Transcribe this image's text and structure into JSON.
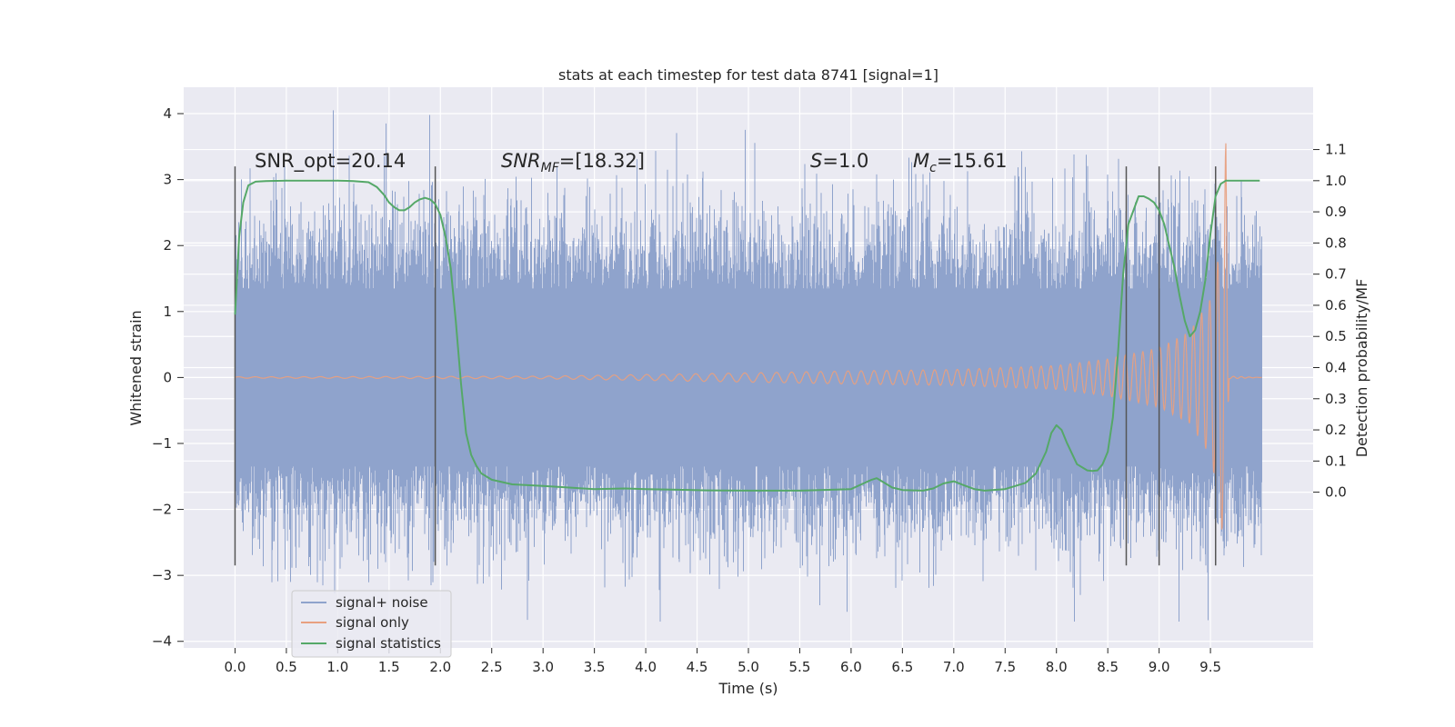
{
  "chart_data": {
    "type": "line",
    "title": "stats at each timestep for test data 8741 [signal=1]",
    "xlabel": "Time (s)",
    "ylabel": "Whitened strain",
    "y2label": "Detection probability/MF",
    "xlim": [
      -0.5,
      10.5
    ],
    "ylim": [
      -4.1,
      4.4
    ],
    "y2lim": [
      -0.5,
      1.3
    ],
    "xticks": [
      0.0,
      0.5,
      1.0,
      1.5,
      2.0,
      2.5,
      3.0,
      3.5,
      4.0,
      4.5,
      5.0,
      5.5,
      6.0,
      6.5,
      7.0,
      7.5,
      8.0,
      8.5,
      9.0,
      9.5
    ],
    "xtick_labels": [
      "0.0",
      "0.5",
      "1.0",
      "1.5",
      "2.0",
      "2.5",
      "3.0",
      "3.5",
      "4.0",
      "4.5",
      "5.0",
      "5.5",
      "6.0",
      "6.5",
      "7.0",
      "7.5",
      "8.0",
      "8.5",
      "9.0",
      "9.5"
    ],
    "yticks": [
      4,
      3,
      2,
      1,
      0,
      -1,
      -2,
      -3,
      -4
    ],
    "ytick_labels": [
      "4",
      "3",
      "2",
      "1",
      "0",
      "−1",
      "−2",
      "−3",
      "−4"
    ],
    "y2ticks": [
      1.1,
      1.0,
      0.9,
      0.8,
      0.7,
      0.6,
      0.5,
      0.4,
      0.3,
      0.2,
      0.1,
      0.0
    ],
    "y2tick_labels": [
      "1.1",
      "1.0",
      "0.9",
      "0.8",
      "0.7",
      "0.6",
      "0.5",
      "0.4",
      "0.3",
      "0.2",
      "0.1",
      "0.0"
    ],
    "grid": true,
    "legend_position": "lower-left",
    "annotations": {
      "snr_opt": "SNR_opt=20.14",
      "snr_mf_base": "SNR",
      "snr_mf_sub": "MF",
      "snr_mf_value": "=[18.32]",
      "s_base": "S",
      "s_value": "=1.0",
      "mc_base": "M",
      "mc_sub": "c",
      "mc_value": "=15.61"
    },
    "vertical_markers_x": [
      0.0,
      1.95,
      8.68,
      9.0,
      9.55
    ],
    "vertical_marker_ylim": [
      -2.85,
      3.2
    ],
    "series": [
      {
        "name": "signal+ noise",
        "color": "#8fa3cc",
        "x_range": [
          0.0,
          10.0
        ],
        "band_core": 1.35,
        "spike_envelope": [
          -3.7,
          4.05
        ]
      },
      {
        "name": "signal only",
        "color": "#e8a080",
        "chirp_amplitude": [
          [
            0.0,
            0.01
          ],
          [
            3.0,
            0.02
          ],
          [
            5.0,
            0.07
          ],
          [
            6.0,
            0.1
          ],
          [
            7.0,
            0.12
          ],
          [
            8.0,
            0.18
          ],
          [
            8.5,
            0.28
          ],
          [
            9.0,
            0.45
          ],
          [
            9.3,
            0.7
          ],
          [
            9.5,
            1.2
          ],
          [
            9.6,
            2.0
          ],
          [
            9.65,
            3.6
          ],
          [
            9.68,
            0.02
          ],
          [
            10.0,
            0.0
          ]
        ]
      },
      {
        "name": "signal statistics",
        "color": "#55a868",
        "x": [
          0.0,
          0.04,
          0.08,
          0.13,
          0.2,
          0.3,
          0.5,
          0.8,
          1.0,
          1.15,
          1.3,
          1.38,
          1.45,
          1.5,
          1.55,
          1.6,
          1.65,
          1.7,
          1.75,
          1.8,
          1.85,
          1.9,
          1.95,
          2.0,
          2.05,
          2.1,
          2.15,
          2.2,
          2.25,
          2.3,
          2.35,
          2.4,
          2.5,
          2.7,
          3.0,
          3.5,
          3.8,
          4.0,
          4.3,
          4.6,
          5.0,
          5.5,
          6.0,
          6.1,
          6.2,
          6.25,
          6.3,
          6.4,
          6.5,
          6.7,
          6.8,
          6.9,
          7.0,
          7.1,
          7.2,
          7.3,
          7.5,
          7.7,
          7.8,
          7.9,
          7.95,
          8.0,
          8.05,
          8.1,
          8.2,
          8.3,
          8.35,
          8.4,
          8.45,
          8.5,
          8.55,
          8.6,
          8.65,
          8.7,
          8.8,
          8.85,
          8.9,
          8.95,
          9.0,
          9.05,
          9.1,
          9.15,
          9.2,
          9.25,
          9.3,
          9.35,
          9.4,
          9.45,
          9.5,
          9.55,
          9.6,
          9.65,
          9.7,
          9.8,
          9.9,
          9.98
        ],
        "values": [
          0.57,
          0.82,
          0.93,
          0.985,
          0.997,
          0.999,
          1.0,
          1.0,
          1.0,
          0.999,
          0.995,
          0.98,
          0.955,
          0.93,
          0.915,
          0.905,
          0.905,
          0.915,
          0.93,
          0.94,
          0.945,
          0.94,
          0.925,
          0.89,
          0.82,
          0.72,
          0.55,
          0.35,
          0.19,
          0.12,
          0.085,
          0.06,
          0.04,
          0.025,
          0.02,
          0.01,
          0.012,
          0.01,
          0.008,
          0.006,
          0.005,
          0.005,
          0.01,
          0.025,
          0.04,
          0.045,
          0.035,
          0.015,
          0.007,
          0.005,
          0.012,
          0.028,
          0.035,
          0.022,
          0.01,
          0.005,
          0.01,
          0.03,
          0.06,
          0.13,
          0.19,
          0.215,
          0.2,
          0.16,
          0.09,
          0.07,
          0.068,
          0.07,
          0.09,
          0.13,
          0.24,
          0.45,
          0.7,
          0.86,
          0.95,
          0.95,
          0.942,
          0.93,
          0.905,
          0.86,
          0.79,
          0.72,
          0.63,
          0.55,
          0.5,
          0.52,
          0.58,
          0.68,
          0.83,
          0.95,
          0.99,
          1.0,
          1.0,
          1.0,
          1.0,
          1.0
        ]
      }
    ]
  }
}
